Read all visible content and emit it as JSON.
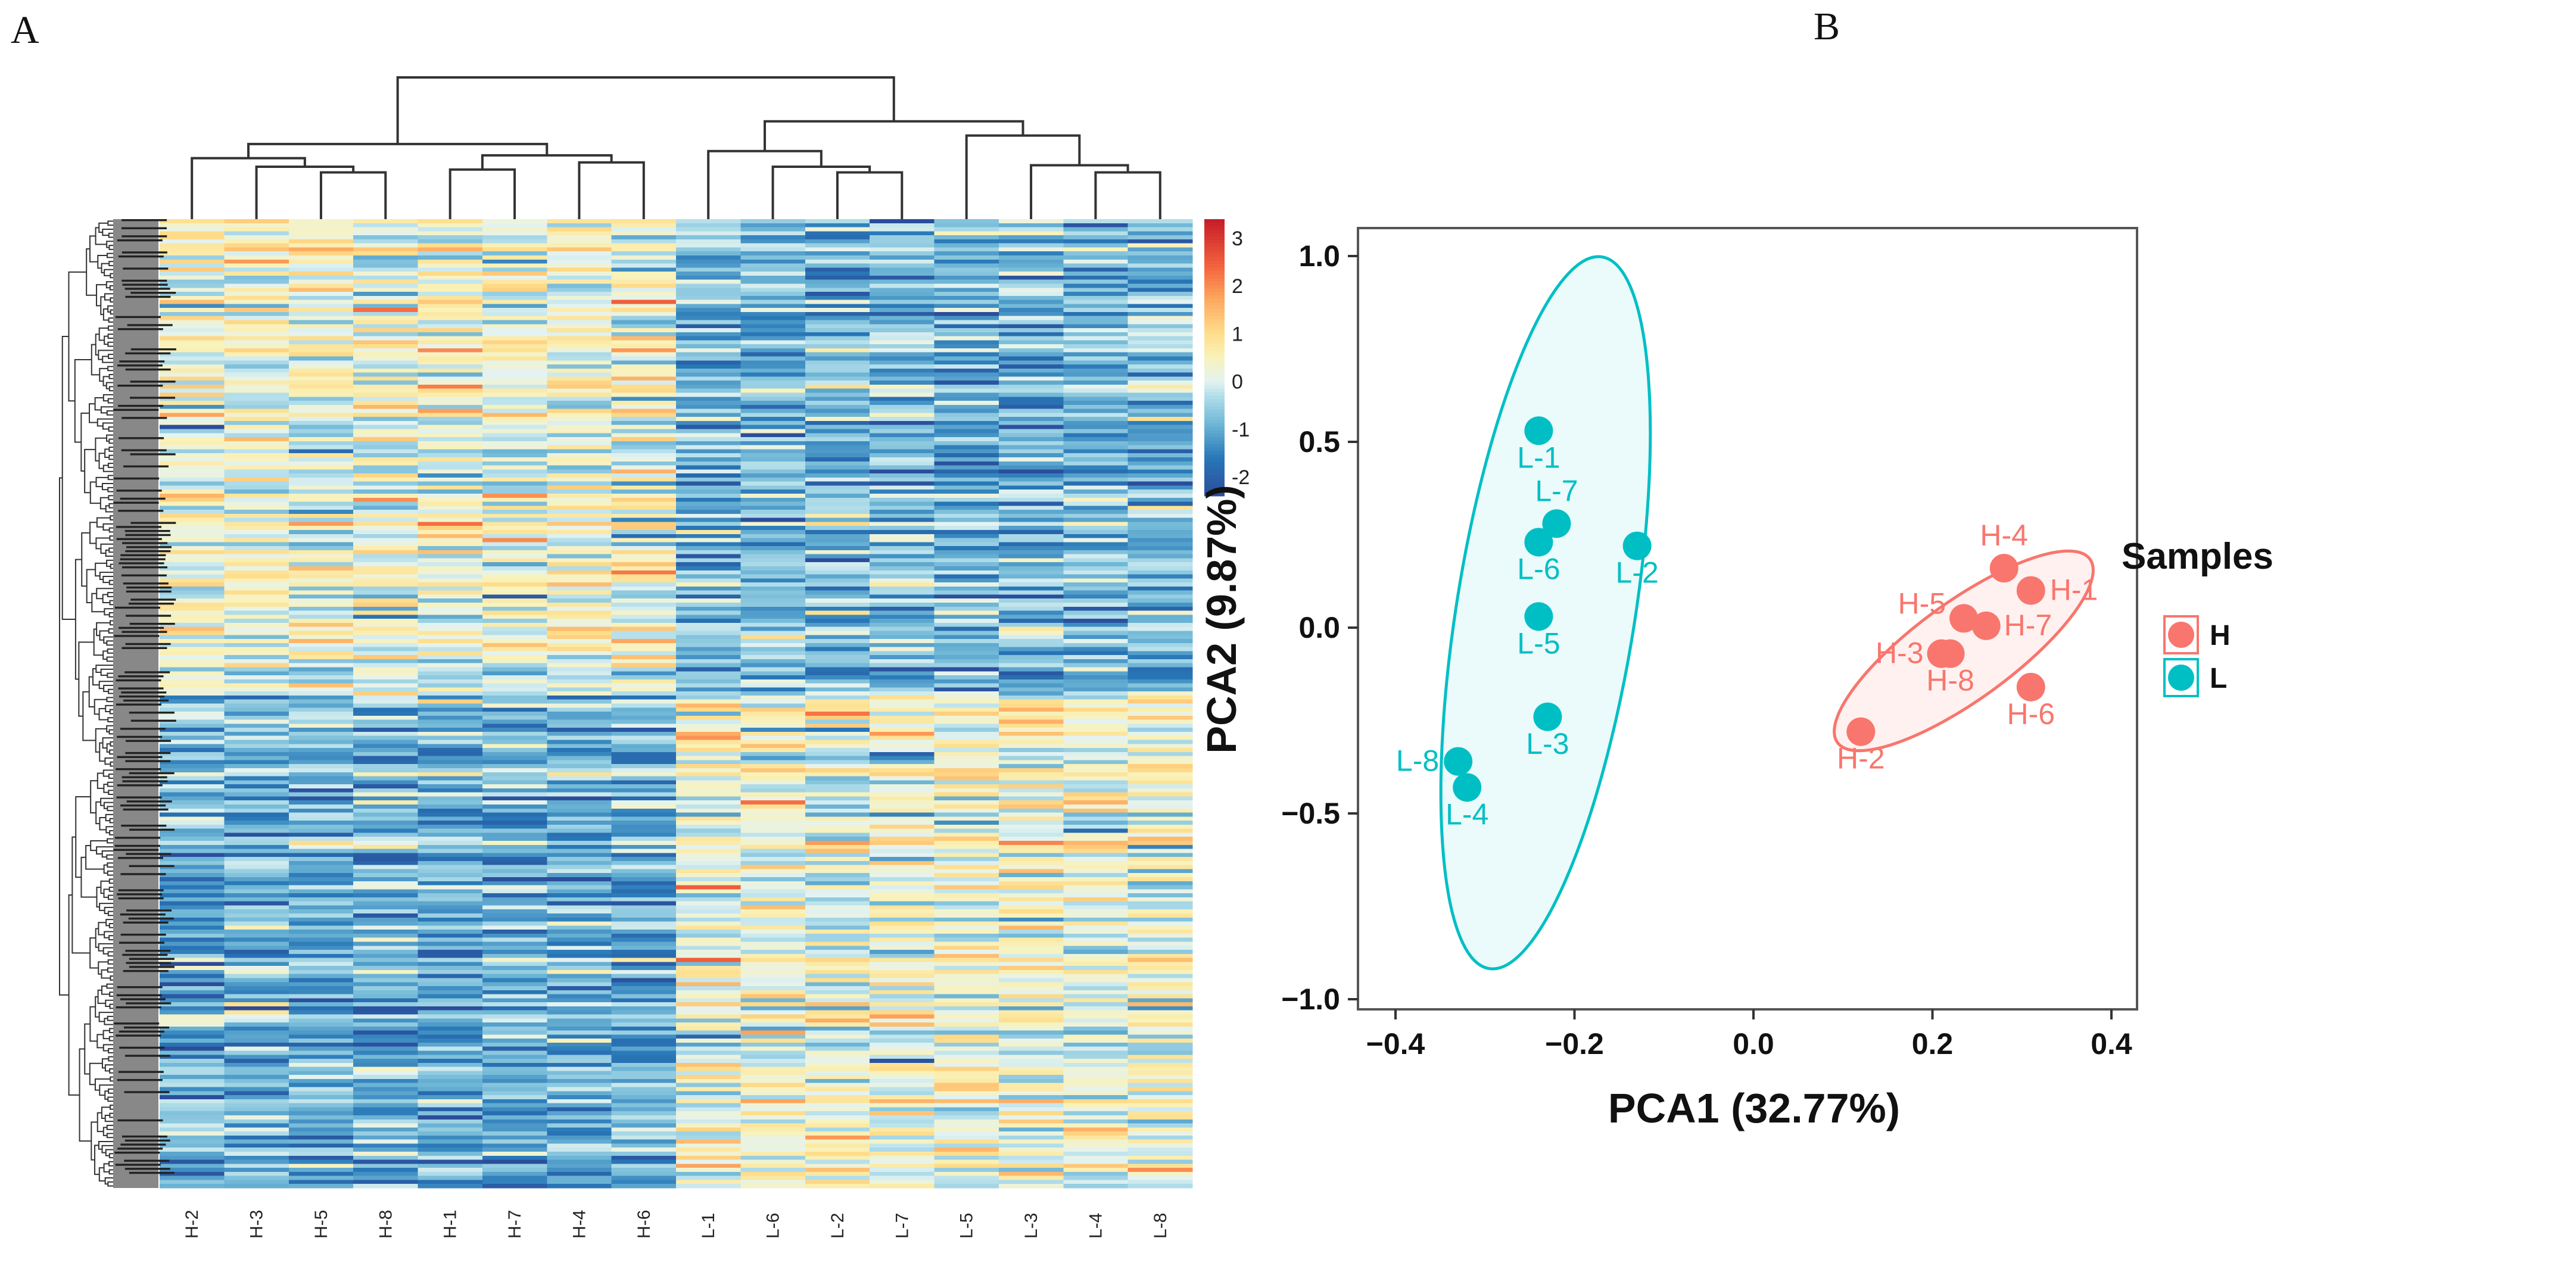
{
  "panels": {
    "a_label": "A",
    "b_label": "B"
  },
  "chart_data": [
    {
      "type": "heatmap",
      "title": "",
      "columns": [
        "H-2",
        "H-3",
        "H-5",
        "H-8",
        "H-1",
        "H-7",
        "H-4",
        "H-6",
        "L-1",
        "L-6",
        "L-2",
        "L-7",
        "L-5",
        "L-3",
        "L-4",
        "L-8"
      ],
      "column_dendrogram": [
        1.0,
        [
          0.53,
          [
            0.43,
            0,
            [
              0.37,
              1,
              [
                0.33,
                2,
                3
              ]
            ]
          ],
          [
            0.45,
            [
              0.35,
              4,
              5
            ],
            [
              0.4,
              6,
              7
            ]
          ]
        ],
        [
          0.69,
          [
            0.48,
            8,
            [
              0.37,
              9,
              [
                0.33,
                10,
                11
              ]
            ]
          ],
          [
            0.59,
            12,
            [
              0.38,
              13,
              [
                0.33,
                14,
                15
              ]
            ]
          ]
        ]
      ],
      "colorbar": {
        "ticks": [
          "3",
          "2",
          "1",
          "0",
          "-1",
          "-2"
        ],
        "tick_values": [
          3,
          2,
          1,
          0,
          -1,
          -2
        ],
        "range": [
          -2.4,
          3.4
        ]
      },
      "pattern": "upper rows higher in H samples, lower rows higher in L samples"
    },
    {
      "type": "scatter",
      "xlabel": "PCA1 (32.77%)",
      "ylabel": "PCA2 (9.87%)",
      "xlim": [
        -0.442,
        0.429
      ],
      "ylim": [
        -1.027,
        1.075
      ],
      "xticks": [
        {
          "v": -0.4,
          "label": "−0.4"
        },
        {
          "v": -0.2,
          "label": "−0.2"
        },
        {
          "v": 0.0,
          "label": "0.0"
        },
        {
          "v": 0.2,
          "label": "0.2"
        },
        {
          "v": 0.4,
          "label": "0.4"
        }
      ],
      "yticks": [
        {
          "v": 1.0,
          "label": "1.0"
        },
        {
          "v": 0.5,
          "label": "0.5"
        },
        {
          "v": 0.0,
          "label": "0.0"
        },
        {
          "v": -0.5,
          "label": "−0.5"
        },
        {
          "v": -1.0,
          "label": "−1.0"
        }
      ],
      "grid": false,
      "legend": {
        "title": "Samples",
        "position": "right",
        "entries": [
          {
            "label": "H",
            "color": "#F8766D"
          },
          {
            "label": "L",
            "color": "#00BFC4"
          }
        ]
      },
      "points": [
        {
          "label": "L-1",
          "group": "L",
          "x": -0.24,
          "y": 0.53
        },
        {
          "label": "L-7",
          "group": "L",
          "x": -0.22,
          "y": 0.28
        },
        {
          "label": "L-6",
          "group": "L",
          "x": -0.24,
          "y": 0.23
        },
        {
          "label": "L-2",
          "group": "L",
          "x": -0.13,
          "y": 0.22
        },
        {
          "label": "L-5",
          "group": "L",
          "x": -0.24,
          "y": 0.03
        },
        {
          "label": "L-3",
          "group": "L",
          "x": -0.23,
          "y": -0.24
        },
        {
          "label": "L-8",
          "group": "L",
          "x": -0.33,
          "y": -0.36
        },
        {
          "label": "L-4",
          "group": "L",
          "x": -0.32,
          "y": -0.43
        },
        {
          "label": "H-4",
          "group": "H",
          "x": 0.28,
          "y": 0.16
        },
        {
          "label": "H-1",
          "group": "H",
          "x": 0.31,
          "y": 0.1
        },
        {
          "label": "H-5",
          "group": "H",
          "x": 0.235,
          "y": 0.025
        },
        {
          "label": "H-7",
          "group": "H",
          "x": 0.26,
          "y": 0.005
        },
        {
          "label": "H-3",
          "group": "H",
          "x": 0.21,
          "y": -0.07
        },
        {
          "label": "H-8",
          "group": "H",
          "x": 0.22,
          "y": -0.07
        },
        {
          "label": "H-6",
          "group": "H",
          "x": 0.31,
          "y": -0.16
        },
        {
          "label": "H-2",
          "group": "H",
          "x": 0.12,
          "y": -0.28
        }
      ]
    }
  ]
}
